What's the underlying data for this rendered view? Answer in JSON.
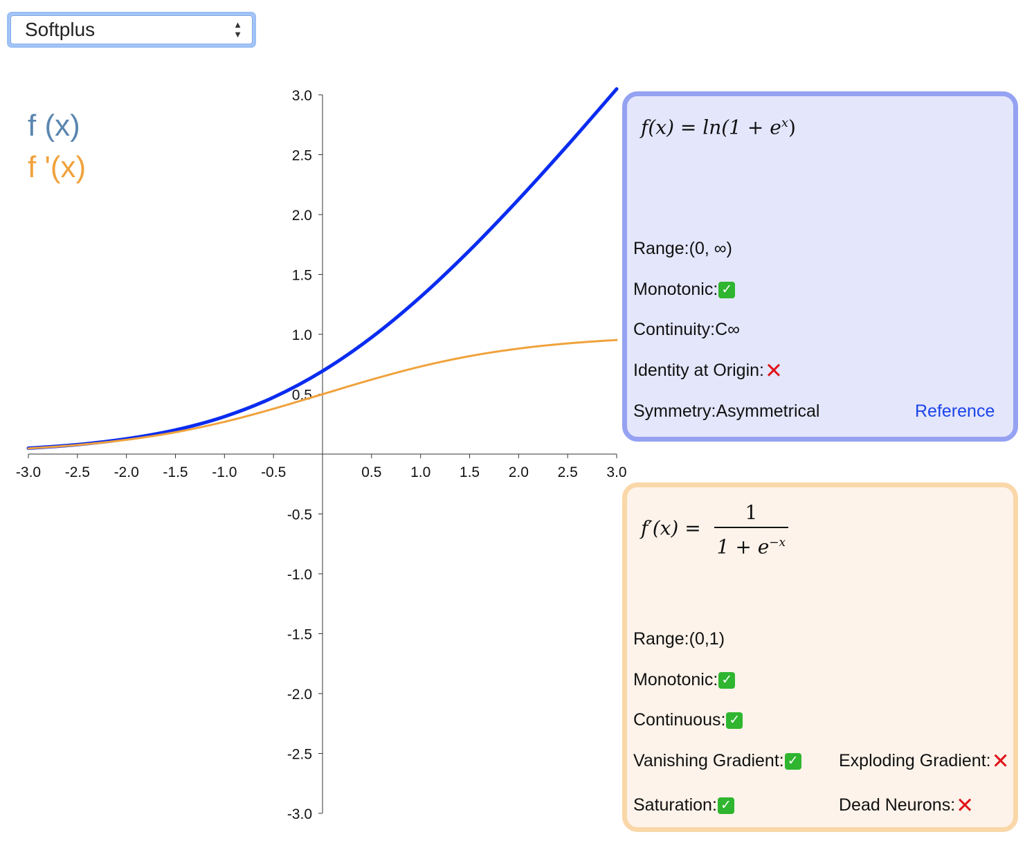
{
  "dropdown": {
    "selected": "Softplus"
  },
  "legend": {
    "f": "f (x)",
    "df": "f '(x)"
  },
  "colors": {
    "f_line": "#0a2cf0",
    "df_line": "#f0a23c",
    "f_legend": "#5b86b0",
    "df_legend": "#f0a23c"
  },
  "chart_data": {
    "type": "line",
    "xlim": [
      -3.0,
      3.0
    ],
    "ylim": [
      -3.0,
      3.0
    ],
    "x_ticks": [
      "-3.0",
      "-2.5",
      "-2.0",
      "-1.5",
      "-1.0",
      "-0.5",
      "0.5",
      "1.0",
      "1.5",
      "2.0",
      "2.5",
      "3.0"
    ],
    "y_ticks": [
      "3.0",
      "2.5",
      "2.0",
      "1.5",
      "1.0",
      "0.5",
      "-0.5",
      "-1.0",
      "-1.5",
      "-2.0",
      "-2.5",
      "-3.0"
    ],
    "x": [
      -3.0,
      -2.5,
      -2.0,
      -1.5,
      -1.0,
      -0.5,
      0.0,
      0.5,
      1.0,
      1.5,
      2.0,
      2.5,
      3.0
    ],
    "series": [
      {
        "name": "f (x)",
        "color": "#0a2cf0",
        "values": [
          0.049,
          0.079,
          0.127,
          0.201,
          0.313,
          0.474,
          0.693,
          0.974,
          1.313,
          1.701,
          2.127,
          2.579,
          3.049
        ]
      },
      {
        "name": "f '(x)",
        "color": "#f0a23c",
        "values": [
          0.047,
          0.076,
          0.119,
          0.182,
          0.269,
          0.378,
          0.5,
          0.622,
          0.731,
          0.818,
          0.881,
          0.924,
          0.953
        ]
      }
    ],
    "grid": false
  },
  "f_panel": {
    "formula_lhs": "f(x) = ln(1 + e",
    "formula_exp": "x",
    "formula_end": ")",
    "range_label": "Range:",
    "range_value": "(0, ∞)",
    "monotonic_label": "Monotonic:",
    "continuity_label": "Continuity:",
    "continuity_value": "C∞",
    "identity_label": "Identity at Origin:",
    "symmetry_label": "Symmetry: ",
    "symmetry_value": "Asymmetrical",
    "reference_label": "Reference"
  },
  "df_panel": {
    "formula_lhs": "f′(x) =",
    "formula_num": "1",
    "formula_den": "1 + e",
    "formula_den_exp": "−x",
    "range_label": "Range:",
    "range_value": "(0,1)",
    "monotonic_label": "Monotonic:",
    "continuous_label": "Continuous:",
    "vanishing_label": "Vanishing Gradient:",
    "exploding_label": "Exploding Gradient:",
    "saturation_label": "Saturation:",
    "dead_label": "Dead Neurons:"
  }
}
